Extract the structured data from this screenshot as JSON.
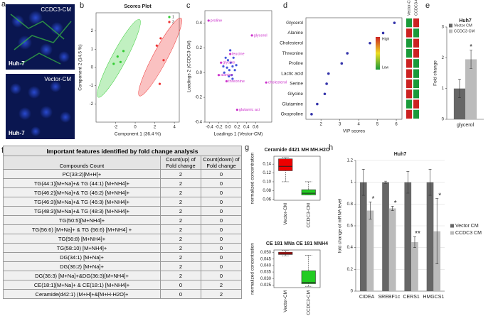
{
  "panel_labels": [
    "a",
    "b",
    "c",
    "d",
    "e",
    "f",
    "g",
    "h"
  ],
  "images": [
    {
      "condition": "CCDC3-CM",
      "cell_line": "Huh-7"
    },
    {
      "condition": "Vector-CM",
      "cell_line": "Huh-7"
    }
  ],
  "chart_data": [
    {
      "type": "scatter",
      "title": "Scores Plot",
      "xlabel": "Component 1 (36.4 %)",
      "ylabel": "Component 2 (14.5 %)",
      "xlim": [
        -4,
        4.5
      ],
      "ylim": [
        -3,
        3
      ],
      "xticks": [
        -2,
        0,
        2,
        4
      ],
      "yticks": [
        -2,
        -1,
        0,
        1,
        2
      ],
      "ellipses": true,
      "legend": "upper right",
      "series": [
        {
          "name": "1",
          "color": "#33cc33",
          "x": [
            -2.2,
            -1.8,
            -1.5,
            -1.2
          ],
          "values": [
            0.2,
            0.6,
            0.3,
            0.9
          ]
        },
        {
          "name": "2",
          "color": "#ee3333",
          "x": [
            2.2,
            2.6,
            2.9,
            2.5
          ],
          "values": [
            1.2,
            1.6,
            0.4,
            -0.9
          ]
        }
      ]
    },
    {
      "type": "scatter",
      "xlabel": "Loadings 1 (Vector-CM)",
      "ylabel": "Loadings 2 (CCDC3-CM)",
      "xlim": [
        -0.5,
        0.95
      ],
      "ylim": [
        -0.4,
        0.5
      ],
      "xticks": [
        -0.4,
        -0.2,
        {
          "value": 0,
          "label": "0.0"
        },
        0.2,
        0.4,
        0.6
      ],
      "yticks": [
        -0.4,
        -0.2,
        {
          "value": 0,
          "label": "0.0"
        },
        0.2,
        0.4
      ],
      "series": [
        {
          "color": "#4455dd",
          "x": [
            -0.1,
            -0.05,
            0,
            0.03,
            0.06,
            0.1,
            0.12,
            0.15,
            -0.08,
            0.02,
            0.08,
            0.18,
            0.05,
            -0.02,
            0.1
          ],
          "values": [
            0.05,
            0.12,
            0.1,
            0.02,
            0.08,
            0.05,
            0.12,
            0.02,
            0,
            -0.03,
            -0.02,
            0.06,
            0.18,
            0.04,
            -0.05
          ]
        },
        {
          "color": "#cc33cc",
          "x": [
            -0.42,
            0.52,
            0.05,
            -0.15,
            -0.2,
            -0.03,
            0.83,
            0.2
          ],
          "values": [
            0.42,
            0.3,
            0.15,
            0.08,
            -0.02,
            -0.07,
            -0.08,
            -0.3
          ],
          "labels": [
            "proline",
            "glycerol",
            "leucine",
            "glycine",
            "alanine",
            "threonine",
            "cholesterol",
            "glutamic aci"
          ]
        }
      ]
    },
    {
      "type": "dot",
      "xlabel": "VIP scores",
      "categories": [
        "Glycerol",
        "Alanine",
        "Cholesterol",
        "Threonine",
        "Proline",
        "Lactic acid",
        "Serine",
        "Glycine",
        "Glutamine",
        "Oxoproline"
      ],
      "values": [
        5.9,
        5.3,
        4.6,
        3.4,
        3.1,
        2.4,
        2.3,
        2.2,
        1.8,
        1.5
      ],
      "color": "#3333aa",
      "xlim": [
        1.2,
        6.3
      ],
      "xticks": [
        2,
        3,
        4,
        5,
        6
      ],
      "heatmap": {
        "columns": [
          "Vector-CM",
          "CCDC3-CM"
        ],
        "values": [
          [
            0,
            1
          ],
          [
            1,
            0
          ],
          [
            0,
            1
          ],
          [
            0,
            1
          ],
          [
            1,
            0
          ],
          [
            1,
            0
          ],
          [
            1,
            0
          ],
          [
            1,
            0
          ],
          [
            0,
            1
          ],
          [
            1,
            0
          ]
        ],
        "low_color": "#1a9a3a",
        "high_color": "#cc2222",
        "high_label": "High",
        "low_label": "Low"
      }
    },
    {
      "type": "bar",
      "title": "Huh7",
      "ylabel": "Fold change",
      "categories": [
        "glycerol"
      ],
      "ylim": [
        0,
        3
      ],
      "yticks": [
        0,
        1,
        2,
        3
      ],
      "legend": "upper left",
      "significance": [
        "*"
      ],
      "series": [
        {
          "name": "Vector CM",
          "color": "#666666",
          "values": [
            1.0
          ],
          "errors": [
            0.3
          ]
        },
        {
          "name": "CCDC3 CM",
          "color": "#bbbbbb",
          "values": [
            1.95
          ],
          "errors": [
            0.3
          ]
        }
      ]
    },
    {
      "type": "box",
      "title": "Ceramide d421 MH MH.H2O",
      "ylabel": "normalized concentration",
      "categories": [
        "Vector-CM",
        "CCDC3-CM"
      ],
      "colors": [
        "#ee0000",
        "#22cc22"
      ],
      "ylim": [
        0.058,
        0.158
      ],
      "yticks": [
        0.06,
        0.08,
        {
          "value": 0.1,
          "label": "0.10"
        },
        0.12,
        0.14
      ],
      "boxes": [
        {
          "whislo": 0.1,
          "q1": 0.125,
          "med": 0.135,
          "q3": 0.152,
          "whishi": 0.155
        },
        {
          "whislo": 0.07,
          "q1": 0.07,
          "med": 0.074,
          "q3": 0.082,
          "whishi": 0.1
        }
      ]
    },
    {
      "type": "box",
      "title": "CE 181 MNa CE 181 MNH4",
      "ylabel": "normalized concentration",
      "categories": [
        "Vector-CM",
        "CCDC3-CM"
      ],
      "colors": [
        "#ee0000",
        "#22cc22"
      ],
      "ylim": [
        0.023,
        0.052
      ],
      "yticks": [
        0.025,
        {
          "value": 0.03,
          "label": "0.030"
        },
        0.035,
        {
          "value": 0.04,
          "label": "0.040"
        },
        0.045,
        {
          "value": 0.05,
          "label": "0.050"
        }
      ],
      "boxes": [
        {
          "whislo": 0.0475,
          "q1": 0.0485,
          "med": 0.049,
          "q3": 0.0502,
          "whishi": 0.0515
        },
        {
          "whislo": 0.024,
          "q1": 0.026,
          "med": 0.027,
          "q3": 0.036,
          "whishi": 0.048
        }
      ]
    },
    {
      "type": "bar",
      "title": "Huh7",
      "ylabel": "fold change of mRNA level",
      "categories": [
        "CIDEA",
        "SREBF1c",
        "CERS1",
        "HMGCS1"
      ],
      "ylim": [
        0,
        1.2
      ],
      "yticks": [
        0,
        0.2,
        0.4,
        0.6,
        0.8,
        1,
        1.2
      ],
      "grid": true,
      "legend": "right",
      "significance": [
        "*",
        "*",
        "**",
        "*"
      ],
      "series": [
        {
          "name": "Vector CM",
          "color": "#666666",
          "values": [
            1,
            1,
            1,
            1
          ],
          "errors": [
            0.12,
            0.01,
            0.1,
            0.12
          ]
        },
        {
          "name": "CCDC3 CM",
          "color": "#bbbbbb",
          "values": [
            0.74,
            0.76,
            0.45,
            0.55
          ],
          "errors": [
            0.08,
            0.02,
            0.05,
            0.3
          ]
        }
      ]
    }
  ],
  "table": {
    "title": "Important features identified by fold change analysis",
    "header": [
      "Compounds Count",
      "Count(up) of Fold change",
      "Count(down) of Fold change"
    ],
    "rows": [
      [
        "PC(33:2)[M+H]+",
        2,
        0
      ],
      [
        "TG(44:1)[M+Na]+& TG (44:1) [M+NH4]+",
        2,
        0
      ],
      [
        "TG(46:2)[M+Na]+& TG (46:2) [M+NH4]+",
        2,
        0
      ],
      [
        "TG(46:3)[M+Na]+& TG (46:3) [M+NH4]+",
        2,
        0
      ],
      [
        "TG(48:3)[M+Na]+& TG (48:3) [M+NH4]+",
        2,
        0
      ],
      [
        "TG(50:5)[M+NH4]+",
        2,
        0
      ],
      [
        "TG(56:6) [M+Na]+ & TG (56:6) [M+NH4] +",
        2,
        0
      ],
      [
        "TG(56:8) [M+NH4]+",
        2,
        0
      ],
      [
        "TG(58:10) [M+NH4]+",
        2,
        0
      ],
      [
        "DG(34:1) [M+Na]+",
        2,
        0
      ],
      [
        "DG(36:2) [M+Na]+",
        2,
        0
      ],
      [
        "DG(36:3) [M+Na]+&DG(36:3)[M+NH4]+",
        2,
        0
      ],
      [
        "CE(18:1)[M+Na]+ & CE(18:1) [M+NH4]+",
        0,
        2
      ],
      [
        "Ceramide(d42:1) (M+H]+&[M+H-H2O]+",
        0,
        2
      ]
    ]
  }
}
